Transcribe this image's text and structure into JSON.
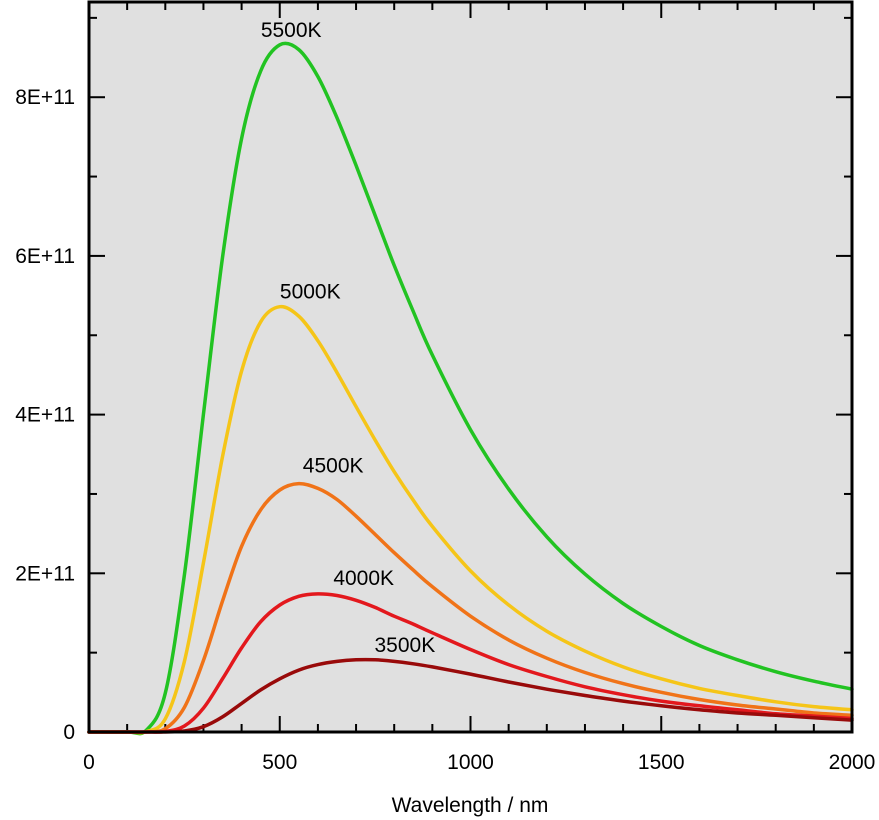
{
  "chart_data": {
    "type": "line",
    "title": "",
    "xlabel": "Wavelength / nm",
    "ylabel": "",
    "xlim": [
      0,
      2000
    ],
    "ylim": [
      0,
      920000000000.0
    ],
    "x_ticks": [
      0,
      500,
      1000,
      1500,
      2000
    ],
    "x_tick_labels": [
      "0",
      "500",
      "1000",
      "1500",
      "2000"
    ],
    "y_ticks": [
      0,
      200000000000.0,
      400000000000.0,
      600000000000.0,
      800000000000.0
    ],
    "y_tick_labels": [
      "0",
      "2E+11",
      "4E+11",
      "6E+11",
      "8E+11"
    ],
    "grid": false,
    "background": "#e0e0e0",
    "x": [
      150,
      200,
      250,
      300,
      350,
      400,
      450,
      500,
      550,
      600,
      650,
      700,
      750,
      800,
      850,
      900,
      1000,
      1100,
      1200,
      1300,
      1400,
      1500,
      1600,
      1700,
      1800,
      1900,
      2000
    ],
    "series": [
      {
        "name": "5500K",
        "color": "#22c322",
        "values": [
          2100000000.0,
          49000000000.0,
          198000000000.0,
          400000000000.0,
          598000000000.0,
          748000000000.0,
          833000000000.0,
          866000000000.0,
          860000000000.0,
          826000000000.0,
          774000000000.0,
          714000000000.0,
          651000000000.0,
          588000000000.0,
          530000000000.0,
          475000000000.0,
          381000000000.0,
          306000000000.0,
          246000000000.0,
          199000000000.0,
          162000000000.0,
          133000000000.0,
          109000000000.0,
          91000000000.0,
          76000000000.0,
          64000000000.0,
          54000000000.0
        ],
        "label_at": [
          530,
          866000000000.0
        ]
      },
      {
        "name": "5000K",
        "color": "#f5c518",
        "values": [
          410000000.0,
          16600000000.0,
          89000000000.0,
          213000000000.0,
          347000000000.0,
          455000000000.0,
          517000000000.0,
          536000000000.0,
          524000000000.0,
          493000000000.0,
          453000000000.0,
          410000000000.0,
          368000000000.0,
          328000000000.0,
          292000000000.0,
          259000000000.0,
          203000000000.0,
          160000000000.0,
          127000000000.0,
          102000000000.0,
          82000000000.0,
          67000000000.0,
          55000000000.0,
          46000000000.0,
          38000000000.0,
          32000000000.0,
          28000000000.0
        ],
        "label_at": [
          580,
          536000000000.0
        ]
      },
      {
        "name": "4500K",
        "color": "#f07318",
        "values": [
          56000000.0,
          4200000000.0,
          31000000000.0,
          90000000000.0,
          165000000000.0,
          234000000000.0,
          280000000000.0,
          305000000000.0,
          313000000000.0,
          307000000000.0,
          293000000000.0,
          272000000000.0,
          249000000000.0,
          226000000000.0,
          204000000000.0,
          183000000000.0,
          146000000000.0,
          116000000000.0,
          93000000000.0,
          75000000000.0,
          61000000000.0,
          50000000000.0,
          41000000000.0,
          34000000000.0,
          29000000000.0,
          24000000000.0,
          21000000000.0
        ],
        "label_at": [
          640,
          317000000000.0
        ]
      },
      {
        "name": "4000K",
        "color": "#e3181d",
        "values": [
          3600000.0,
          650000000.0,
          7500000000.0,
          30000000000.0,
          67000000000.0,
          106000000000.0,
          139000000000.0,
          160000000000.0,
          171000000000.0,
          174000000000.0,
          172000000000.0,
          166000000000.0,
          157000000000.0,
          146000000000.0,
          136000000000.0,
          125000000000.0,
          104000000000.0,
          85000000000.0,
          70000000000.0,
          57000000000.0,
          47000000000.0,
          39000000000.0,
          33000000000.0,
          28000000000.0,
          23000000000.0,
          20000000000.0,
          17000000000.0
        ],
        "label_at": [
          720,
          175000000000.0
        ]
      },
      {
        "name": "3500K",
        "color": "#990a0a",
        "values": [
          100000.0,
          50000000.0,
          1200000000.0,
          6700000000.0,
          19000000000.0,
          36000000000.0,
          53000000000.0,
          67000000000.0,
          78000000000.0,
          85000000000.0,
          89000000000.0,
          91000000000.0,
          91000000000.0,
          89000000000.0,
          86000000000.0,
          82000000000.0,
          73000000000.0,
          63000000000.0,
          54000000000.0,
          46000000000.0,
          39000000000.0,
          33000000000.0,
          28000000000.0,
          24000000000.0,
          21000000000.0,
          18000000000.0,
          15000000000.0
        ],
        "label_at": [
          828,
          91000000000.0
        ]
      }
    ]
  }
}
